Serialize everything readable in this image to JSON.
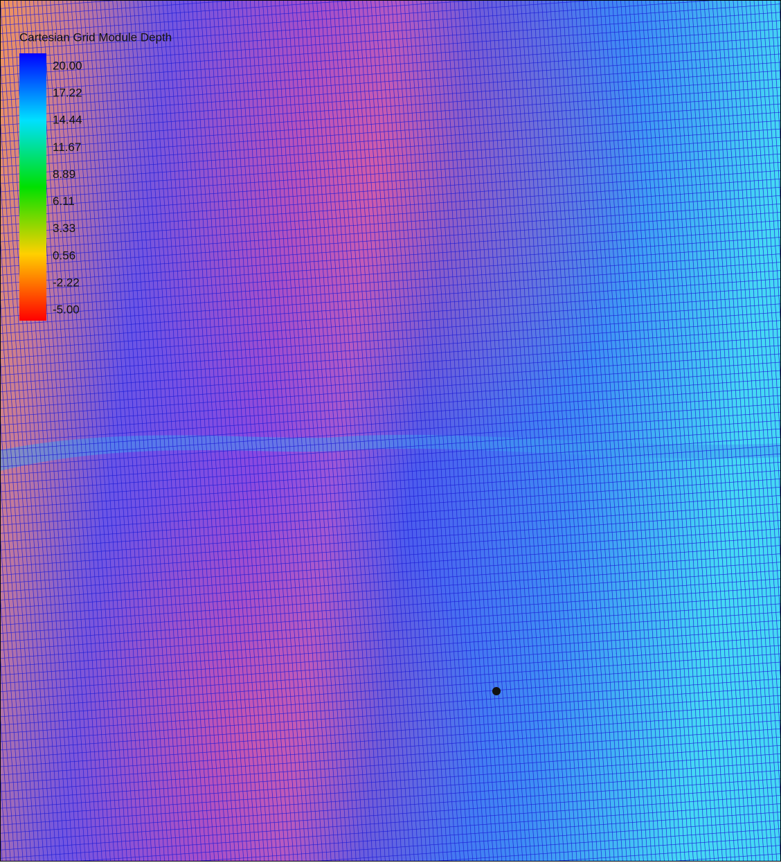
{
  "legend": {
    "title": "Cartesian Grid Module Depth",
    "labels": [
      "20.00",
      "17.22",
      "14.44",
      "11.67",
      "8.89",
      "6.11",
      "3.33",
      "0.56",
      "-2.22",
      "-5.00"
    ]
  }
}
